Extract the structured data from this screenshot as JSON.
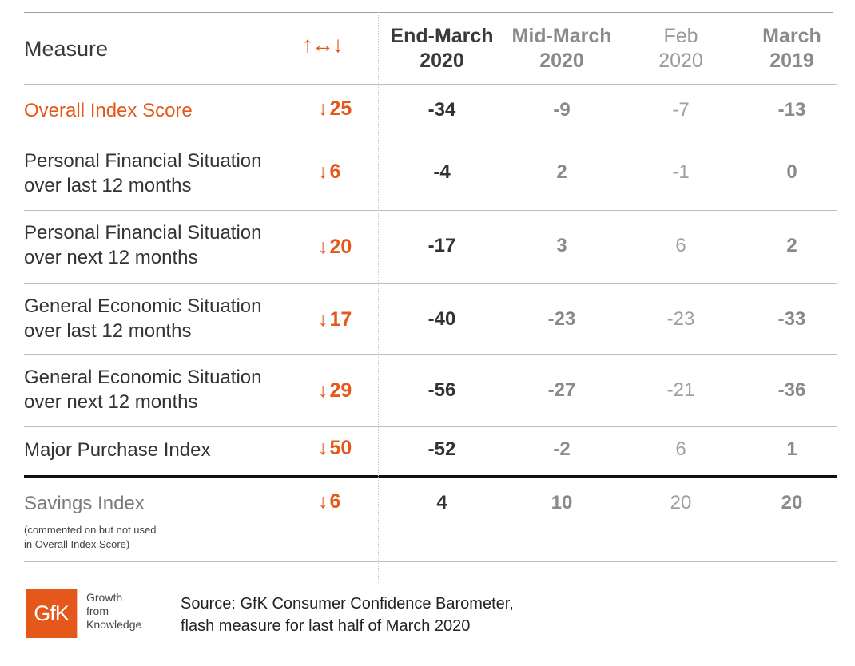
{
  "header": {
    "measure": "Measure",
    "change_arrows": "↑↔↓",
    "columns": [
      {
        "line1": "End-March",
        "line2": "2020"
      },
      {
        "line1": "Mid-March",
        "line2": "2020"
      },
      {
        "line1": "Feb",
        "line2": "2020"
      },
      {
        "line1": "March",
        "line2": "2019"
      }
    ]
  },
  "rows": [
    {
      "measure_line1": "Overall Index Score",
      "measure_line2": "",
      "change_arrow": "↓",
      "change": "25",
      "end_march_2020": "-34",
      "mid_march_2020": "-9",
      "feb_2020": "-7",
      "march_2019": "-13"
    },
    {
      "measure_line1": "Personal Financial Situation",
      "measure_line2": "over last 12 months",
      "change_arrow": "↓",
      "change": "6",
      "end_march_2020": "-4",
      "mid_march_2020": "2",
      "feb_2020": "-1",
      "march_2019": "0"
    },
    {
      "measure_line1": "Personal Financial Situation",
      "measure_line2": "over next 12 months",
      "change_arrow": "↓",
      "change": "20",
      "end_march_2020": "-17",
      "mid_march_2020": "3",
      "feb_2020": "6",
      "march_2019": "2"
    },
    {
      "measure_line1": "General Economic Situation",
      "measure_line2": "over last 12 months",
      "change_arrow": "↓",
      "change": "17",
      "end_march_2020": "-40",
      "mid_march_2020": "-23",
      "feb_2020": "-23",
      "march_2019": "-33"
    },
    {
      "measure_line1": "General Economic Situation",
      "measure_line2": "over next 12 months",
      "change_arrow": "↓",
      "change": "29",
      "end_march_2020": "-56",
      "mid_march_2020": "-27",
      "feb_2020": "-21",
      "march_2019": "-36"
    },
    {
      "measure_line1": "Major Purchase Index",
      "measure_line2": "",
      "change_arrow": "↓",
      "change": "50",
      "end_march_2020": "-52",
      "mid_march_2020": "-2",
      "feb_2020": "6",
      "march_2019": "1"
    },
    {
      "measure_line1": "Savings Index",
      "measure_line2": "",
      "change_arrow": "↓",
      "change": "6",
      "note_line1": "(commented on but not used",
      "note_line2": "in Overall Index Score)",
      "end_march_2020": "4",
      "mid_march_2020": "10",
      "feb_2020": "20",
      "march_2019": "20"
    }
  ],
  "footer": {
    "logo_text": "GfK",
    "tagline": [
      "Growth",
      "from",
      "Knowledge"
    ],
    "source_line1": "Source: GfK Consumer Confidence Barometer,",
    "source_line2": "flash measure for last half of March 2020"
  },
  "colors": {
    "accent": "#e4581b",
    "text_dark": "#333333",
    "text_grey": "#8a8a8a",
    "text_light": "#a0a0a0"
  }
}
